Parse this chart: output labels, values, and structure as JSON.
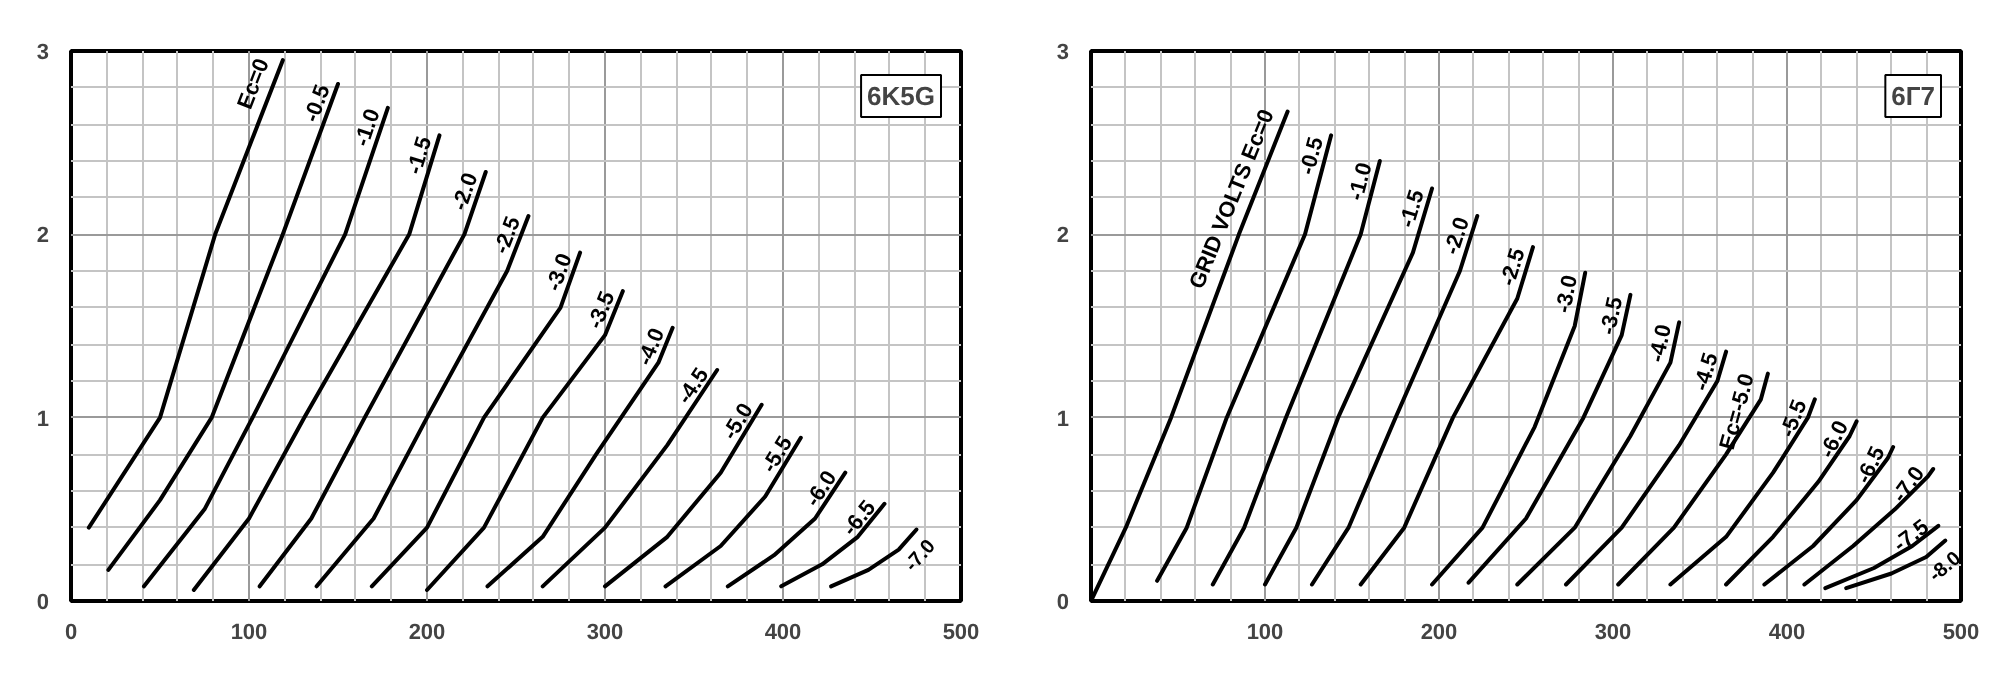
{
  "chart_data": [
    {
      "type": "line",
      "annotations": [
        "6K5G"
      ],
      "grid": true,
      "xlim": [
        0,
        500
      ],
      "ylim": [
        0,
        3
      ],
      "xticks": [
        0,
        {
          "value": 20,
          "label": null
        },
        {
          "value": 40,
          "label": null
        },
        {
          "value": 60,
          "label": null
        },
        {
          "value": 80,
          "label": null
        },
        100,
        {
          "value": 120,
          "label": null
        },
        {
          "value": 140,
          "label": null
        },
        {
          "value": 160,
          "label": null
        },
        {
          "value": 180,
          "label": null
        },
        200,
        {
          "value": 220,
          "label": null
        },
        {
          "value": 240,
          "label": null
        },
        {
          "value": 260,
          "label": null
        },
        {
          "value": 280,
          "label": null
        },
        300,
        {
          "value": 320,
          "label": null
        },
        {
          "value": 340,
          "label": null
        },
        {
          "value": 360,
          "label": null
        },
        {
          "value": 380,
          "label": null
        },
        400,
        {
          "value": 420,
          "label": null
        },
        {
          "value": 440,
          "label": null
        },
        {
          "value": 460,
          "label": null
        },
        {
          "value": 480,
          "label": null
        },
        500
      ],
      "yticks": [
        0,
        {
          "value": 0.2,
          "label": null
        },
        {
          "value": 0.4,
          "label": null
        },
        {
          "value": 0.6,
          "label": null
        },
        {
          "value": 0.8,
          "label": null
        },
        1,
        {
          "value": 1.2,
          "label": null
        },
        {
          "value": 1.4,
          "label": null
        },
        {
          "value": 1.6,
          "label": null
        },
        {
          "value": 1.8,
          "label": null
        },
        2,
        {
          "value": 2.2,
          "label": null
        },
        {
          "value": 2.4,
          "label": null
        },
        {
          "value": 2.6,
          "label": null
        },
        {
          "value": 2.8,
          "label": null
        },
        3
      ],
      "series": [
        {
          "name": "Ec=0",
          "color": "#000000",
          "x": [
            10,
            50,
            81,
            119
          ],
          "values": [
            0.4,
            1,
            2,
            2.95
          ]
        },
        {
          "name": "-0.5",
          "color": "#000000",
          "x": [
            21,
            50,
            79,
            119,
            150
          ],
          "values": [
            0.17,
            0.55,
            1,
            2,
            2.82
          ]
        },
        {
          "name": "-1.0",
          "color": "#000000",
          "x": [
            41,
            75,
            102,
            154,
            178
          ],
          "values": [
            0.08,
            0.5,
            1,
            2,
            2.69
          ]
        },
        {
          "name": "-1.5",
          "color": "#000000",
          "x": [
            69,
            100,
            131,
            190,
            207
          ],
          "values": [
            0.06,
            0.45,
            1,
            2,
            2.54
          ]
        },
        {
          "name": "-2.0",
          "color": "#000000",
          "x": [
            106,
            135,
            165,
            221,
            233
          ],
          "values": [
            0.08,
            0.45,
            1,
            2,
            2.34
          ]
        },
        {
          "name": "-2.5",
          "color": "#000000",
          "x": [
            138,
            170,
            200,
            245,
            257
          ],
          "values": [
            0.08,
            0.45,
            1,
            1.8,
            2.1
          ]
        },
        {
          "name": "-3.0",
          "color": "#000000",
          "x": [
            169,
            200,
            232,
            275,
            286
          ],
          "values": [
            0.08,
            0.4,
            1,
            1.6,
            1.9
          ]
        },
        {
          "name": "-3.5",
          "color": "#000000",
          "x": [
            200,
            232,
            265,
            300,
            310
          ],
          "values": [
            0.06,
            0.4,
            1,
            1.45,
            1.69
          ]
        },
        {
          "name": "-4.0",
          "color": "#000000",
          "x": [
            234,
            265,
            295,
            330,
            338
          ],
          "values": [
            0.08,
            0.35,
            0.8,
            1.3,
            1.49
          ]
        },
        {
          "name": "-4.5",
          "color": "#000000",
          "x": [
            265,
            300,
            335,
            363
          ],
          "values": [
            0.08,
            0.4,
            0.85,
            1.26
          ]
        },
        {
          "name": "-5.0",
          "color": "#000000",
          "x": [
            300,
            335,
            365,
            388
          ],
          "values": [
            0.08,
            0.35,
            0.7,
            1.07
          ]
        },
        {
          "name": "-5.5",
          "color": "#000000",
          "x": [
            334,
            365,
            390,
            410
          ],
          "values": [
            0.08,
            0.3,
            0.57,
            0.89
          ]
        },
        {
          "name": "-6.0",
          "color": "#000000",
          "x": [
            369,
            395,
            418,
            435
          ],
          "values": [
            0.08,
            0.25,
            0.45,
            0.7
          ]
        },
        {
          "name": "-6.5",
          "color": "#000000",
          "x": [
            399,
            422,
            442,
            457
          ],
          "values": [
            0.08,
            0.2,
            0.35,
            0.53
          ]
        },
        {
          "name": "-7.0",
          "color": "#000000",
          "x": [
            427,
            448,
            465,
            475
          ],
          "values": [
            0.08,
            0.17,
            0.28,
            0.39
          ]
        }
      ]
    },
    {
      "type": "line",
      "annotations": [
        "6Г7"
      ],
      "grid": true,
      "xlim": [
        0,
        500
      ],
      "ylim": [
        0,
        3
      ],
      "xticks": [
        {
          "value": 20,
          "label": null
        },
        {
          "value": 40,
          "label": null
        },
        {
          "value": 60,
          "label": null
        },
        {
          "value": 80,
          "label": null
        },
        100,
        {
          "value": 120,
          "label": null
        },
        {
          "value": 140,
          "label": null
        },
        {
          "value": 160,
          "label": null
        },
        {
          "value": 180,
          "label": null
        },
        200,
        {
          "value": 220,
          "label": null
        },
        {
          "value": 240,
          "label": null
        },
        {
          "value": 260,
          "label": null
        },
        {
          "value": 280,
          "label": null
        },
        300,
        {
          "value": 320,
          "label": null
        },
        {
          "value": 340,
          "label": null
        },
        {
          "value": 360,
          "label": null
        },
        {
          "value": 380,
          "label": null
        },
        400,
        {
          "value": 420,
          "label": null
        },
        {
          "value": 440,
          "label": null
        },
        {
          "value": 460,
          "label": null
        },
        {
          "value": 480,
          "label": null
        },
        500
      ],
      "yticks": [
        0,
        {
          "value": 0.2,
          "label": null
        },
        {
          "value": 0.4,
          "label": null
        },
        {
          "value": 0.6,
          "label": null
        },
        {
          "value": 0.8,
          "label": null
        },
        1,
        {
          "value": 1.2,
          "label": null
        },
        {
          "value": 1.4,
          "label": null
        },
        {
          "value": 1.6,
          "label": null
        },
        {
          "value": 1.8,
          "label": null
        },
        2,
        {
          "value": 2.2,
          "label": null
        },
        {
          "value": 2.4,
          "label": null
        },
        {
          "value": 2.6,
          "label": null
        },
        {
          "value": 2.8,
          "label": null
        },
        3
      ],
      "series": [
        {
          "name": "GRID VOLTS Ec=0",
          "color": "#000000",
          "x": [
            0,
            20,
            46,
            85,
            113
          ],
          "values": [
            0,
            0.4,
            1,
            2,
            2.67
          ]
        },
        {
          "name": "-0.5",
          "color": "#000000",
          "x": [
            38,
            55,
            78,
            123,
            138
          ],
          "values": [
            0.11,
            0.4,
            1,
            2,
            2.54
          ]
        },
        {
          "name": "-1.0",
          "color": "#000000",
          "x": [
            70,
            88,
            112,
            155,
            166
          ],
          "values": [
            0.09,
            0.4,
            1,
            2,
            2.4
          ]
        },
        {
          "name": "-1.5",
          "color": "#000000",
          "x": [
            100,
            118,
            142,
            185,
            196
          ],
          "values": [
            0.09,
            0.4,
            1,
            1.9,
            2.25
          ]
        },
        {
          "name": "-2.0",
          "color": "#000000",
          "x": [
            127,
            148,
            175,
            212,
            222
          ],
          "values": [
            0.09,
            0.4,
            1,
            1.8,
            2.1
          ]
        },
        {
          "name": "-2.5",
          "color": "#000000",
          "x": [
            155,
            180,
            208,
            245,
            254
          ],
          "values": [
            0.09,
            0.4,
            1,
            1.65,
            1.93
          ]
        },
        {
          "name": "-3.0",
          "color": "#000000",
          "x": [
            196,
            225,
            255,
            278,
            284
          ],
          "values": [
            0.09,
            0.4,
            0.95,
            1.5,
            1.79
          ]
        },
        {
          "name": "-3.5",
          "color": "#000000",
          "x": [
            217,
            250,
            283,
            305,
            310
          ],
          "values": [
            0.1,
            0.45,
            1,
            1.45,
            1.67
          ]
        },
        {
          "name": "-4.0",
          "color": "#000000",
          "x": [
            245,
            278,
            310,
            333,
            338
          ],
          "values": [
            0.09,
            0.4,
            0.9,
            1.3,
            1.52
          ]
        },
        {
          "name": "-4.5",
          "color": "#000000",
          "x": [
            273,
            305,
            338,
            360,
            365
          ],
          "values": [
            0.09,
            0.4,
            0.85,
            1.2,
            1.36
          ]
        },
        {
          "name": "Ec=-5.0",
          "color": "#000000",
          "x": [
            303,
            335,
            365,
            385,
            389
          ],
          "values": [
            0.09,
            0.4,
            0.8,
            1.1,
            1.24
          ]
        },
        {
          "name": "-5.5",
          "color": "#000000",
          "x": [
            333,
            365,
            392,
            412,
            416
          ],
          "values": [
            0.09,
            0.35,
            0.7,
            1.0,
            1.1
          ]
        },
        {
          "name": "-6.0",
          "color": "#000000",
          "x": [
            365,
            392,
            418,
            436,
            440
          ],
          "values": [
            0.09,
            0.35,
            0.65,
            0.9,
            0.98
          ]
        },
        {
          "name": "-6.5",
          "color": "#000000",
          "x": [
            387,
            415,
            440,
            458,
            461
          ],
          "values": [
            0.09,
            0.3,
            0.55,
            0.78,
            0.84
          ]
        },
        {
          "name": "-7.0",
          "color": "#000000",
          "x": [
            410,
            438,
            462,
            481,
            484
          ],
          "values": [
            0.09,
            0.3,
            0.5,
            0.68,
            0.72
          ]
        },
        {
          "name": "-7.5",
          "color": "#000000",
          "x": [
            422,
            450,
            472,
            487
          ],
          "values": [
            0.07,
            0.18,
            0.3,
            0.41
          ]
        },
        {
          "name": "-8.0",
          "color": "#000000",
          "x": [
            434,
            460,
            480,
            491
          ],
          "values": [
            0.07,
            0.15,
            0.24,
            0.33
          ]
        }
      ]
    }
  ]
}
